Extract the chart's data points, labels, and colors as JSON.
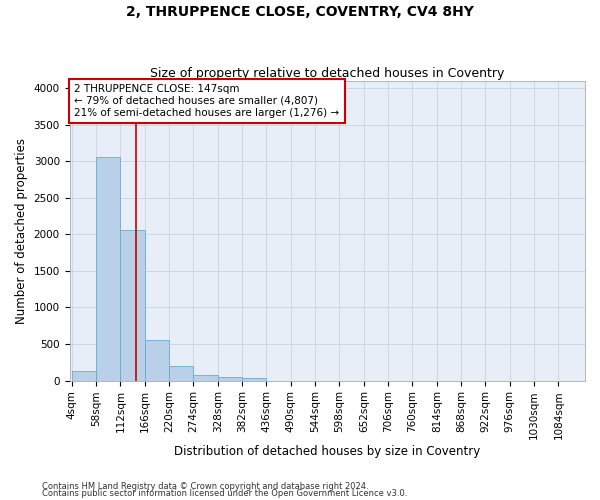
{
  "title": "2, THRUPPENCE CLOSE, COVENTRY, CV4 8HY",
  "subtitle": "Size of property relative to detached houses in Coventry",
  "xlabel": "Distribution of detached houses by size in Coventry",
  "ylabel": "Number of detached properties",
  "footnote1": "Contains HM Land Registry data © Crown copyright and database right 2024.",
  "footnote2": "Contains public sector information licensed under the Open Government Licence v3.0.",
  "bin_edges": [
    4,
    58,
    112,
    166,
    220,
    274,
    328,
    382,
    436,
    490,
    544,
    598,
    652,
    706,
    760,
    814,
    868,
    922,
    976,
    1030,
    1084
  ],
  "bar_heights": [
    130,
    3050,
    2060,
    560,
    200,
    80,
    55,
    40,
    0,
    0,
    0,
    0,
    0,
    0,
    0,
    0,
    0,
    0,
    0,
    0
  ],
  "bar_color": "#b8d0e8",
  "bar_edgecolor": "#6aaad4",
  "grid_color": "#c8d4e4",
  "background_color": "#e8eef8",
  "vline_x": 147,
  "vline_color": "#cc0000",
  "annotation_text": "2 THRUPPENCE CLOSE: 147sqm\n← 79% of detached houses are smaller (4,807)\n21% of semi-detached houses are larger (1,276) →",
  "annotation_box_color": "#ffffff",
  "annotation_box_edgecolor": "#cc0000",
  "ylim": [
    0,
    4100
  ],
  "yticks": [
    0,
    500,
    1000,
    1500,
    2000,
    2500,
    3000,
    3500,
    4000
  ],
  "title_fontsize": 10,
  "subtitle_fontsize": 9,
  "label_fontsize": 8.5,
  "tick_fontsize": 7.5,
  "annot_fontsize": 7.5
}
